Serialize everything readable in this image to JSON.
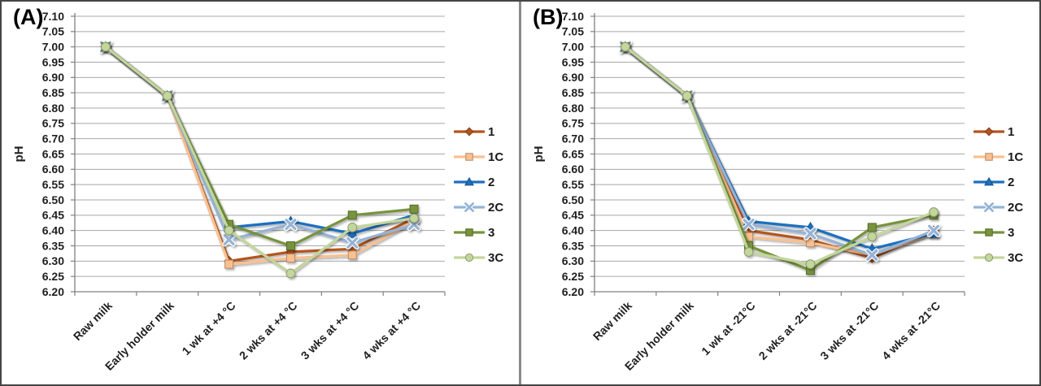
{
  "figure": {
    "border_color": "#454545",
    "divider_color": "#8a8a8a",
    "background": "#ffffff",
    "gridline_color": "#a8a8a8",
    "axis_color": "#808080",
    "text_color": "#1f1f1f"
  },
  "chart_data": [
    {
      "type": "line",
      "panel_label": "(A)",
      "ylabel": "pH",
      "ylim": [
        6.2,
        7.1
      ],
      "ytick_step": 0.05,
      "y_ticks": [
        "7.10",
        "7.05",
        "7.00",
        "6.95",
        "6.90",
        "6.85",
        "6.80",
        "6.75",
        "6.70",
        "6.65",
        "6.60",
        "6.55",
        "6.50",
        "6.45",
        "6.40",
        "6.35",
        "6.30",
        "6.25",
        "6.20"
      ],
      "grid": true,
      "legend_position": "right",
      "categories": [
        "Raw milk",
        "Early holder milk",
        "1 wk at +4 °C",
        "2 wks at +4 °C",
        "3 wks at +4 °C",
        "4 wks at +4 °C"
      ],
      "series": [
        {
          "name": "1",
          "color": "#B4541E",
          "marker": "diamond",
          "values": [
            7.0,
            6.84,
            6.3,
            6.33,
            6.34,
            6.44
          ]
        },
        {
          "name": "1C",
          "color": "#FAC090",
          "marker": "square",
          "values": [
            7.0,
            6.84,
            6.29,
            6.31,
            6.32,
            6.43
          ]
        },
        {
          "name": "2",
          "color": "#1F6FC0",
          "marker": "triangle",
          "values": [
            7.0,
            6.84,
            6.41,
            6.43,
            6.39,
            6.45
          ]
        },
        {
          "name": "2C",
          "color": "#95B3D7",
          "marker": "x",
          "values": [
            7.0,
            6.84,
            6.37,
            6.42,
            6.36,
            6.42
          ]
        },
        {
          "name": "3",
          "color": "#77933C",
          "marker": "square",
          "values": [
            7.0,
            6.84,
            6.42,
            6.35,
            6.45,
            6.47
          ]
        },
        {
          "name": "3C",
          "color": "#C3D69B",
          "marker": "circle",
          "values": [
            7.0,
            6.84,
            6.4,
            6.26,
            6.41,
            6.44
          ]
        }
      ]
    },
    {
      "type": "line",
      "panel_label": "(B)",
      "ylabel": "pH",
      "ylim": [
        6.2,
        7.1
      ],
      "ytick_step": 0.05,
      "y_ticks": [
        "7.10",
        "7.05",
        "7.00",
        "6.95",
        "6.90",
        "6.85",
        "6.80",
        "6.75",
        "6.70",
        "6.65",
        "6.60",
        "6.55",
        "6.50",
        "6.45",
        "6.40",
        "6.35",
        "6.30",
        "6.25",
        "6.20"
      ],
      "grid": true,
      "legend_position": "right",
      "categories": [
        "Raw milk",
        "Early holder milk",
        "1 wk at -21°C",
        "2 wks at -21°C",
        "3 wks at -21°C",
        "4 wks at -21°C"
      ],
      "series": [
        {
          "name": "1",
          "color": "#B4541E",
          "marker": "diamond",
          "values": [
            7.0,
            6.84,
            6.4,
            6.37,
            6.31,
            6.4
          ]
        },
        {
          "name": "1C",
          "color": "#FAC090",
          "marker": "square",
          "values": [
            7.0,
            6.84,
            6.38,
            6.36,
            6.32,
            6.39
          ]
        },
        {
          "name": "2",
          "color": "#1F6FC0",
          "marker": "triangle",
          "values": [
            7.0,
            6.84,
            6.43,
            6.41,
            6.34,
            6.39
          ]
        },
        {
          "name": "2C",
          "color": "#95B3D7",
          "marker": "x",
          "values": [
            7.0,
            6.84,
            6.42,
            6.39,
            6.32,
            6.4
          ]
        },
        {
          "name": "3",
          "color": "#77933C",
          "marker": "square",
          "values": [
            7.0,
            6.84,
            6.35,
            6.27,
            6.41,
            6.45
          ]
        },
        {
          "name": "3C",
          "color": "#C3D69B",
          "marker": "circle",
          "values": [
            7.0,
            6.84,
            6.33,
            6.29,
            6.38,
            6.46
          ]
        }
      ]
    }
  ]
}
